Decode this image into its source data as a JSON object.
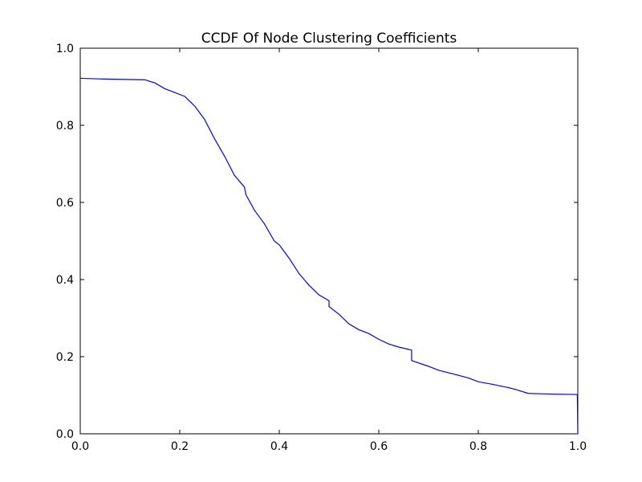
{
  "chart_data": {
    "type": "line",
    "title": "CCDF Of Node Clustering Coefficients",
    "xlabel": "",
    "ylabel": "",
    "xlim": [
      0.0,
      1.0
    ],
    "ylim": [
      0.0,
      1.0
    ],
    "grid": false,
    "legend": "none",
    "x_ticks": [
      0.0,
      0.2,
      0.4,
      0.6,
      0.8,
      1.0
    ],
    "x_tick_labels": [
      "0.0",
      "0.2",
      "0.4",
      "0.6",
      "0.8",
      "1.0"
    ],
    "y_ticks": [
      0.0,
      0.2,
      0.4,
      0.6,
      0.8,
      1.0
    ],
    "y_tick_labels": [
      "0.0",
      "0.2",
      "0.4",
      "0.6",
      "0.8",
      "1.0"
    ],
    "series": [
      {
        "color": "#0000ff",
        "x": [
          0.0,
          0.05,
          0.13,
          0.15,
          0.17,
          0.19,
          0.21,
          0.23,
          0.25,
          0.27,
          0.29,
          0.31,
          0.33,
          0.333,
          0.35,
          0.37,
          0.39,
          0.4,
          0.42,
          0.44,
          0.46,
          0.48,
          0.5,
          0.5,
          0.52,
          0.54,
          0.56,
          0.58,
          0.6,
          0.62,
          0.64,
          0.666,
          0.666,
          0.7,
          0.72,
          0.75,
          0.78,
          0.8,
          0.83,
          0.86,
          0.875,
          0.9,
          0.92,
          0.95,
          0.999,
          1.0
        ],
        "y": [
          0.922,
          0.92,
          0.918,
          0.91,
          0.895,
          0.885,
          0.875,
          0.85,
          0.815,
          0.765,
          0.72,
          0.67,
          0.64,
          0.62,
          0.58,
          0.545,
          0.5,
          0.49,
          0.455,
          0.415,
          0.385,
          0.36,
          0.345,
          0.33,
          0.31,
          0.285,
          0.27,
          0.26,
          0.245,
          0.233,
          0.225,
          0.217,
          0.19,
          0.175,
          0.165,
          0.155,
          0.145,
          0.135,
          0.128,
          0.12,
          0.115,
          0.105,
          0.104,
          0.103,
          0.102,
          0.0
        ]
      }
    ]
  }
}
